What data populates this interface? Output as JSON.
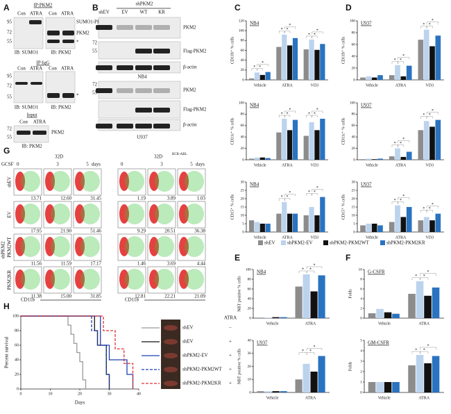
{
  "figure": {
    "panels": [
      "A",
      "B",
      "C",
      "D",
      "E",
      "F",
      "G",
      "H"
    ],
    "a_labels": [
      "IP:PKM2",
      "Con",
      "ATRA",
      "Con",
      "ATRA",
      "95",
      "72",
      "55",
      "SUMO1-PKM2",
      "PKM2",
      "*",
      "IB: SUMO1",
      "IB: PKM2",
      "IP:IgG",
      "Con",
      "ATRA",
      "Con",
      "ATRA",
      "95",
      "72",
      "55",
      "*",
      "IB: SUMO1",
      "IB: PKM2",
      "Input",
      "Con",
      "ATRA",
      "72",
      "55",
      "PKM2",
      "IB: PKM2"
    ],
    "b_labels": [
      "shPKM2",
      "shEV",
      "EV",
      "WT",
      "KR",
      "PKM2",
      "72",
      "55",
      "Flag-PKM2",
      "β-actin",
      "NB4",
      "72",
      "55",
      "PKM2",
      "Flag-PKM2",
      "β-actin",
      "U937"
    ],
    "g": {
      "c32d": "32D",
      "bcr": "BCR-ABL",
      "gcsf": "GCSF",
      "t0": "0",
      "t3": "3",
      "t5": "5",
      "days": "days",
      "rows": [
        "shEV",
        "EV",
        "PKM2WT",
        "PKM2KR"
      ],
      "group": "shPKM2",
      "x_label": "CD11b",
      "values": [
        [
          "13.71",
          "12.60",
          "31.45",
          "1.19",
          "3.89",
          "1.03"
        ],
        [
          "17.95",
          "21.90",
          "51.46",
          "9.29",
          "20.51",
          "36.38"
        ],
        [
          "11.56",
          "11.59",
          "17.17",
          "1.46",
          "3.69",
          "4.44"
        ],
        [
          "11.38",
          "15.00",
          "31.85",
          "12.81",
          "22.21",
          "21.09"
        ]
      ]
    },
    "bar_legend": [
      {
        "name": "shEV",
        "color": "#8c8c8c"
      },
      {
        "name": "shPKM2-EV",
        "color": "#bcd3ee"
      },
      {
        "name": "shPKM2-PKM2WT",
        "color": "#111111"
      },
      {
        "name": "shPKM2-PKM2KR",
        "color": "#2a73c0"
      }
    ],
    "sig": "*"
  },
  "chart_data": [
    {
      "type": "bar",
      "title": "NB4",
      "y_label": "CD11b⁺ % cells",
      "categories": [
        "Vehicle",
        "ATRA",
        "VD3"
      ],
      "ylim": [
        0,
        120
      ],
      "yticks": [
        0,
        20,
        40,
        60,
        80,
        100,
        120
      ],
      "series": [
        {
          "color": "#8c8c8c",
          "values": [
            3,
            67,
            62
          ]
        },
        {
          "color": "#bcd3ee",
          "values": [
            15,
            92,
            82
          ]
        },
        {
          "color": "#111111",
          "values": [
            10,
            70,
            61
          ]
        },
        {
          "color": "#2a73c0",
          "values": [
            16,
            85,
            73
          ]
        }
      ]
    },
    {
      "type": "bar",
      "title": "U937",
      "y_label": "CD11b⁺ % cells",
      "categories": [
        "Vehicle",
        "ATRA",
        "VD3"
      ],
      "ylim": [
        0,
        100
      ],
      "yticks": [
        0,
        20,
        40,
        60,
        80,
        100
      ],
      "series": [
        {
          "color": "#8c8c8c",
          "values": [
            4,
            8,
            68
          ]
        },
        {
          "color": "#bcd3ee",
          "values": [
            6,
            25,
            85
          ]
        },
        {
          "color": "#111111",
          "values": [
            4,
            6,
            57
          ]
        },
        {
          "color": "#2a73c0",
          "values": [
            8,
            24,
            75
          ]
        }
      ]
    },
    {
      "type": "bar",
      "title": "NB4",
      "y_label": "CD11c⁺ % cells",
      "categories": [
        "Vehicle",
        "ATRA",
        "VD3"
      ],
      "ylim": [
        0,
        100
      ],
      "yticks": [
        0,
        20,
        40,
        60,
        80,
        100
      ],
      "series": [
        {
          "color": "#8c8c8c",
          "values": [
            2,
            48,
            42
          ]
        },
        {
          "color": "#bcd3ee",
          "values": [
            4,
            72,
            66
          ]
        },
        {
          "color": "#111111",
          "values": [
            4,
            52,
            52
          ]
        },
        {
          "color": "#2a73c0",
          "values": [
            3,
            70,
            72
          ]
        }
      ]
    },
    {
      "type": "bar",
      "title": "U937",
      "y_label": "CD11c⁺ % cells",
      "categories": [
        "Vehicle",
        "ATRA",
        "VD3"
      ],
      "ylim": [
        0,
        100
      ],
      "yticks": [
        0,
        20,
        40,
        60,
        80,
        100
      ],
      "series": [
        {
          "color": "#8c8c8c",
          "values": [
            1,
            6,
            52
          ]
        },
        {
          "color": "#bcd3ee",
          "values": [
            2,
            20,
            68
          ]
        },
        {
          "color": "#111111",
          "values": [
            1,
            5,
            58
          ]
        },
        {
          "color": "#2a73c0",
          "values": [
            2,
            14,
            70
          ]
        }
      ]
    },
    {
      "type": "bar",
      "title": "NB4",
      "y_label": "CD15⁺ % cells",
      "categories": [
        "Vehicle",
        "ATRA",
        "VD3"
      ],
      "ylim": [
        0,
        30
      ],
      "yticks": [
        0,
        5,
        10,
        15,
        20,
        25,
        30
      ],
      "series": [
        {
          "color": "#8c8c8c",
          "values": [
            7,
            11,
            10
          ]
        },
        {
          "color": "#bcd3ee",
          "values": [
            6,
            18,
            15
          ]
        },
        {
          "color": "#111111",
          "values": [
            5,
            11,
            10
          ]
        },
        {
          "color": "#2a73c0",
          "values": [
            5,
            11,
            21
          ]
        }
      ]
    },
    {
      "type": "bar",
      "title": "U937",
      "y_label": "CD15⁺ % cells",
      "categories": [
        "Vehicle",
        "ATRA",
        "VD3"
      ],
      "ylim": [
        0,
        30
      ],
      "yticks": [
        0,
        5,
        10,
        15,
        20,
        25,
        30
      ],
      "series": [
        {
          "color": "#8c8c8c",
          "values": [
            4,
            6,
            7
          ]
        },
        {
          "color": "#bcd3ee",
          "values": [
            5,
            16,
            9
          ]
        },
        {
          "color": "#111111",
          "values": [
            5,
            9,
            7
          ]
        },
        {
          "color": "#2a73c0",
          "values": [
            4,
            15,
            11
          ]
        }
      ]
    },
    {
      "type": "bar",
      "title": "NB4",
      "y_label": "NBT positive  % cells",
      "categories": [
        "Vehicle",
        "ATRA"
      ],
      "ylim": [
        0,
        100
      ],
      "yticks": [
        0,
        20,
        40,
        60,
        80,
        100
      ],
      "series": [
        {
          "color": "#8c8c8c",
          "values": [
            1,
            65
          ]
        },
        {
          "color": "#bcd3ee",
          "values": [
            1,
            90
          ]
        },
        {
          "color": "#111111",
          "values": [
            2,
            55
          ]
        },
        {
          "color": "#2a73c0",
          "values": [
            2,
            88
          ]
        }
      ]
    },
    {
      "type": "bar",
      "title": "G-CSFR",
      "y_label": "Folds",
      "categories": [
        "Vehicle",
        "ATRA"
      ],
      "ylim": [
        0,
        10
      ],
      "yticks": [
        0,
        2,
        4,
        6,
        8,
        10
      ],
      "series": [
        {
          "color": "#8c8c8c",
          "values": [
            1,
            5
          ]
        },
        {
          "color": "#bcd3ee",
          "values": [
            1.9,
            7.6
          ]
        },
        {
          "color": "#111111",
          "values": [
            1.2,
            4.6
          ]
        },
        {
          "color": "#2a73c0",
          "values": [
            0.9,
            6.3
          ]
        }
      ]
    },
    {
      "type": "bar",
      "title": "U937",
      "y_label": "NBT positive  % cells",
      "categories": [
        "Vehicle",
        "ATRA"
      ],
      "ylim": [
        0,
        40
      ],
      "yticks": [
        0,
        10,
        20,
        30,
        40
      ],
      "series": [
        {
          "color": "#8c8c8c",
          "values": [
            1,
            10
          ]
        },
        {
          "color": "#bcd3ee",
          "values": [
            1,
            22
          ]
        },
        {
          "color": "#111111",
          "values": [
            1,
            16
          ]
        },
        {
          "color": "#2a73c0",
          "values": [
            1,
            28
          ]
        }
      ]
    },
    {
      "type": "bar",
      "title": "GM-CSFR",
      "y_label": "Folds",
      "categories": [
        "Vehicle",
        "ATRA"
      ],
      "ylim": [
        0,
        5
      ],
      "yticks": [
        0,
        1,
        2,
        3,
        4,
        5
      ],
      "series": [
        {
          "color": "#8c8c8c",
          "values": [
            1,
            2.6
          ]
        },
        {
          "color": "#bcd3ee",
          "values": [
            1,
            3.6
          ]
        },
        {
          "color": "#111111",
          "values": [
            1,
            2.8
          ]
        },
        {
          "color": "#2a73c0",
          "values": [
            1,
            3.5
          ]
        }
      ]
    },
    {
      "type": "line",
      "x_label": "Days",
      "y_label": "Percent survival",
      "legend_header": "ATRA",
      "xlim": [
        0,
        40
      ],
      "xticks": [
        0,
        10,
        20,
        30,
        40
      ],
      "ylim": [
        0,
        100
      ],
      "yticks": [
        0,
        20,
        40,
        60,
        80,
        100
      ],
      "series": [
        {
          "name": "shEV",
          "atra": "−",
          "color": "#999999",
          "dashed": false,
          "x": [
            0,
            16,
            17,
            18,
            19,
            20,
            21,
            22
          ],
          "values": [
            100,
            87.5,
            75,
            62.5,
            50,
            37.5,
            12.5,
            0
          ]
        },
        {
          "name": "shEV",
          "atra": "+",
          "color": "#111111",
          "dashed": false,
          "x": [
            0,
            25,
            26,
            29,
            30
          ],
          "values": [
            100,
            80,
            60,
            20,
            0
          ]
        },
        {
          "name": "shPKM2-EV",
          "atra": "+",
          "color": "#1f3fb0",
          "dashed": false,
          "x": [
            0,
            27,
            30,
            36,
            38
          ],
          "values": [
            100,
            60,
            40,
            20,
            0
          ]
        },
        {
          "name": "shPKM2-PKM2WT",
          "atra": "+",
          "color": "#1f3fb0",
          "dashed": true,
          "x": [
            0,
            24,
            26,
            29,
            30
          ],
          "values": [
            100,
            80,
            60,
            20,
            0
          ]
        },
        {
          "name": "shPKM2-PKM2KR",
          "atra": "+",
          "color": "#e03030",
          "dashed": true,
          "x": [
            0,
            28,
            32,
            35,
            38
          ],
          "values": [
            100,
            80,
            55,
            35,
            0
          ]
        }
      ]
    }
  ]
}
